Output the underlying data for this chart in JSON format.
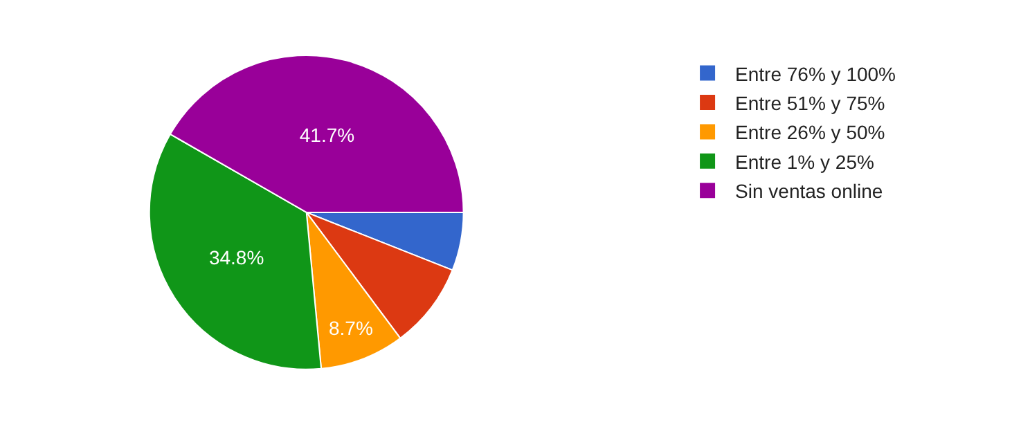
{
  "chart_data": {
    "type": "pie",
    "categories": [
      "Entre 76% y 100%",
      "Entre 51% y 75%",
      "Entre 26% y 50%",
      "Entre 1% y 25%",
      "Sin ventas online"
    ],
    "values": [
      6.0,
      8.8,
      8.7,
      34.8,
      41.7
    ],
    "colors": [
      "#3366cc",
      "#dc3912",
      "#ff9900",
      "#109618",
      "#990099"
    ],
    "value_labels": [
      null,
      null,
      "8.7%",
      "34.8%",
      "41.7%"
    ],
    "legend": "right"
  }
}
